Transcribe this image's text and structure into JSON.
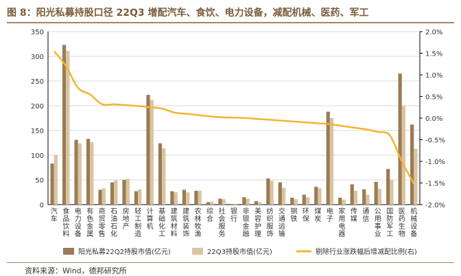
{
  "title": "图 8：阳光私募持股口径 22Q3 增配汽车、食饮、电力设备，减配机械、医药、军工",
  "source": "资料来源：Wind，德邦研究所",
  "chart_data": {
    "type": "bar",
    "categories": [
      "汽车",
      "食品饮料",
      "电力设备",
      "有色金属",
      "商贸零售",
      "石油石化",
      "房地产",
      "轻工制造",
      "计算机",
      "基础化工",
      "建筑材料",
      "建筑装饰",
      "农林牧渔",
      "综合",
      "社会服务",
      "银行",
      "非银金融",
      "美容护理",
      "纺织服饰",
      "交通运输",
      "钢铁",
      "环保",
      "煤炭",
      "电子",
      "家用电器",
      "传媒",
      "通信",
      "公用事业",
      "国防军工",
      "医药生物",
      "机械设备"
    ],
    "series": [
      {
        "name": "阳光私募22Q2持股市值(亿元)",
        "axis": "left",
        "color": "#9b7b55",
        "values": [
          83,
          323,
          131,
          133,
          30,
          45,
          50,
          27,
          222,
          124,
          27,
          30,
          28,
          5,
          12,
          1,
          15,
          7,
          53,
          45,
          14,
          20,
          36,
          188,
          14,
          41,
          31,
          46,
          72,
          265,
          162
        ]
      },
      {
        "name": "22Q3持股市值(亿元)",
        "axis": "left",
        "color": "#d9c5a2",
        "values": [
          100,
          311,
          124,
          126,
          33,
          49,
          52,
          31,
          212,
          114,
          25,
          25,
          28,
          6,
          11,
          1,
          12,
          5,
          48,
          34,
          11,
          15,
          33,
          175,
          10,
          28,
          20,
          32,
          50,
          200,
          113
        ]
      },
      {
        "name": "剔除行业涨跌幅后增减配比例(右)",
        "axis": "right",
        "type": "line",
        "color": "#f5b42b",
        "values": [
          1.55,
          1.2,
          0.7,
          0.55,
          0.32,
          0.32,
          0.3,
          0.28,
          0.25,
          0.22,
          0.13,
          0.1,
          0.07,
          0.04,
          0.02,
          0.01,
          0.0,
          -0.02,
          -0.04,
          -0.06,
          -0.08,
          -0.1,
          -0.12,
          -0.14,
          -0.18,
          -0.22,
          -0.26,
          -0.32,
          -0.4,
          -1.0,
          -1.52
        ]
      }
    ],
    "left_axis": {
      "min": 0,
      "max": 350,
      "ticks": [
        0,
        50,
        100,
        150,
        200,
        250,
        300,
        350
      ]
    },
    "right_axis": {
      "min": -2.0,
      "max": 2.0,
      "ticks": [
        "2.0%",
        "1.5%",
        "1.0%",
        "0.5%",
        "0.0%",
        "-0.5%",
        "-1.0%",
        "-1.5%",
        "-2.0%"
      ]
    },
    "legend_position": "bottom"
  }
}
